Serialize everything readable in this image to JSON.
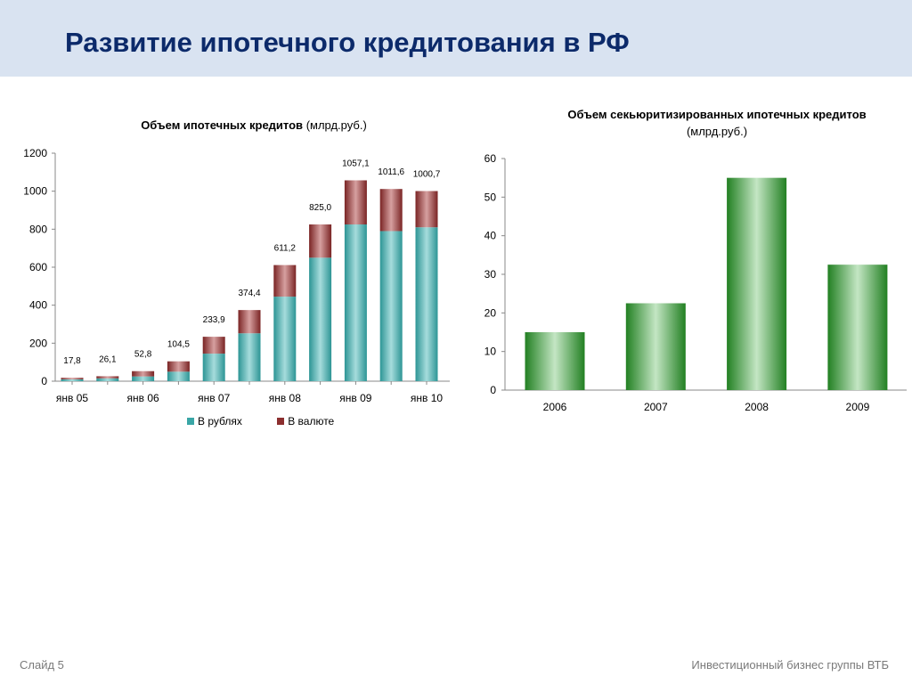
{
  "slide": {
    "title": "Развитие ипотечного кредитования в РФ",
    "footer_left": "Слайд 5",
    "footer_right": "Инвестиционный бизнес группы ВТБ"
  },
  "colors": {
    "header_bg": "#d9e3f1",
    "title": "#0c2a6a",
    "rub": "#3aa6a6",
    "fx": "#8c2f2f",
    "green": "#2f8a2f"
  },
  "chart_data": [
    {
      "type": "bar",
      "stacked": true,
      "title": "Объем ипотечных кредитов",
      "title_unit": "(млрд.руб.)",
      "x_tick_labels": [
        "янв 05",
        "янв 06",
        "янв 07",
        "янв 08",
        "янв 09",
        "янв 10"
      ],
      "y_ticks": [
        0,
        200,
        400,
        600,
        800,
        1000,
        1200
      ],
      "ylim": [
        0,
        1200
      ],
      "grid": false,
      "legend": "bottom",
      "series": [
        {
          "name": "В рублях",
          "values": [
            10,
            15,
            25,
            50,
            145,
            252,
            445,
            650,
            825,
            790,
            810
          ]
        },
        {
          "name": "В валюте",
          "values": [
            7.8,
            11.1,
            27.8,
            54.5,
            88.9,
            122.4,
            166.2,
            175,
            232.1,
            221.6,
            190.7
          ]
        }
      ],
      "total_labels": [
        "17,8",
        "26,1",
        "52,8",
        "104,5",
        "233,9",
        "374,4",
        "611,2",
        "825,0",
        "1057,1",
        "1011,6",
        "1000,7"
      ]
    },
    {
      "type": "bar",
      "title": "Объем секьюритизированных ипотечных кредитов",
      "title_unit": "(млрд.руб.)",
      "categories": [
        "2006",
        "2007",
        "2008",
        "2009"
      ],
      "values": [
        15,
        22.5,
        55,
        32.5
      ],
      "y_ticks": [
        0,
        10,
        20,
        30,
        40,
        50,
        60
      ],
      "ylim": [
        0,
        60
      ],
      "grid": false,
      "legend": "none"
    }
  ]
}
